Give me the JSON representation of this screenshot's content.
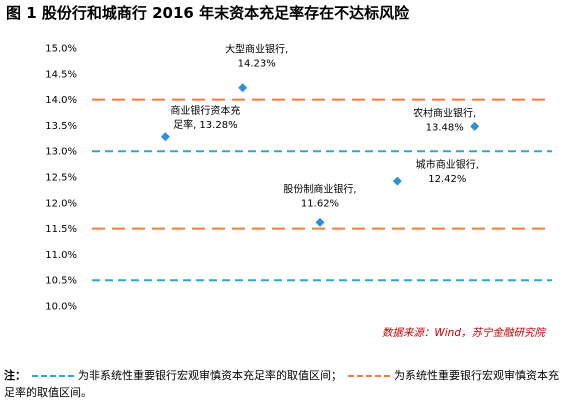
{
  "title": "图 1  股份行和城商行 2016 年末资本充足率存在不达标风险",
  "source": "数据来源：Wind，苏宁金融研究院",
  "footnote": {
    "lead": "注：",
    "blue_text": "为非系统性重要银行宏观审慎资本充足率的取值区间；",
    "orange_text": "为系统性重要银行宏观审慎资本充足率的取值区间。"
  },
  "colors": {
    "marker": "#2e8fd6",
    "blue_line": "#2aa7d3",
    "orange_line": "#ee7d3b"
  },
  "chart_data": {
    "type": "scatter",
    "title": "图 1  股份行和城商行 2016 年末资本充足率存在不达标风险",
    "ylim": [
      10.0,
      15.0
    ],
    "yticks": [
      "10.0%",
      "10.5%",
      "11.0%",
      "11.5%",
      "12.0%",
      "12.5%",
      "13.0%",
      "13.5%",
      "14.0%",
      "14.5%",
      "15.0%"
    ],
    "xlim": [
      0,
      6
    ],
    "grid": false,
    "legend": "none",
    "reference_lines": [
      {
        "y": 10.5,
        "style": "dashed",
        "color": "blue"
      },
      {
        "y": 13.0,
        "style": "dashed",
        "color": "blue"
      },
      {
        "y": 11.5,
        "style": "dashed",
        "color": "orange"
      },
      {
        "y": 14.0,
        "style": "dashed",
        "color": "orange"
      }
    ],
    "points": [
      {
        "x": 1.0,
        "y": 13.28,
        "lines": [
          "商业银行资本充",
          "足率, 13.28%"
        ]
      },
      {
        "x": 2.0,
        "y": 14.23,
        "lines": [
          "大型商业银行,",
          "14.23%"
        ]
      },
      {
        "x": 3.0,
        "y": 11.62,
        "lines": [
          "股份制商业银行,",
          "11.62%"
        ]
      },
      {
        "x": 4.0,
        "y": 12.42,
        "lines": [
          "城市商业银行,",
          "12.42%"
        ]
      },
      {
        "x": 5.0,
        "y": 13.48,
        "lines": [
          "农村商业银行,",
          "13.48%"
        ]
      }
    ]
  }
}
